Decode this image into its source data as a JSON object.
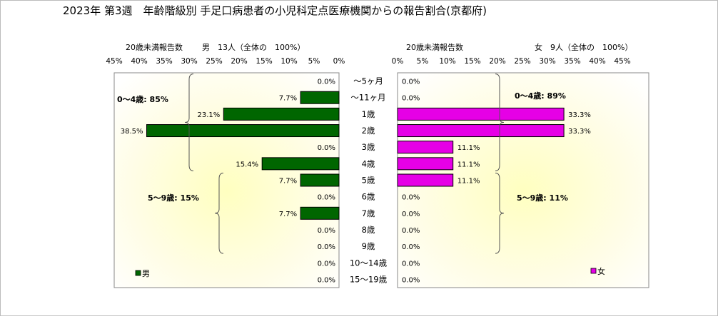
{
  "title": "2023年 第3週　年齢階級別 手足口病患者の小児科定点医療機関からの報告割合(京都府)",
  "chart_data": {
    "type": "bar",
    "categories": [
      "～5ヶ月",
      "～11ヶ月",
      "1歳",
      "2歳",
      "3歳",
      "4歳",
      "5歳",
      "6歳",
      "7歳",
      "8歳",
      "9歳",
      "10～14歳",
      "15～19歳"
    ],
    "x_ticks": [
      "45%",
      "40%",
      "35%",
      "30%",
      "25%",
      "20%",
      "15%",
      "10%",
      "5%",
      "0%"
    ],
    "x_ticks_right": [
      "0%",
      "5%",
      "10%",
      "15%",
      "20%",
      "25%",
      "30%",
      "35%",
      "40%",
      "45%"
    ],
    "xlim": [
      0,
      45
    ],
    "series": [
      {
        "name": "男",
        "subtitle_caption": "20歳未満報告数",
        "subtitle_total": "男　13人（全体の　100%）",
        "color": "#006600",
        "values": [
          0.0,
          7.7,
          23.1,
          38.5,
          0.0,
          15.4,
          7.7,
          0.0,
          7.7,
          0.0,
          0.0,
          0.0,
          0.0
        ],
        "labels": [
          "0.0%",
          "7.7%",
          "23.1%",
          "38.5%",
          "0.0%",
          "15.4%",
          "7.7%",
          "0.0%",
          "7.7%",
          "0.0%",
          "0.0%",
          "0.0%",
          "0.0%"
        ],
        "group_labels": [
          "0～4歳: 85%",
          "5～9歳: 15%"
        ]
      },
      {
        "name": "女",
        "subtitle_caption": "20歳未満報告数",
        "subtitle_total": "女　9人（全体の　100%）",
        "color": "#e600e6",
        "values": [
          0.0,
          0.0,
          33.3,
          33.3,
          11.1,
          11.1,
          11.1,
          0.0,
          0.0,
          0.0,
          0.0,
          0.0,
          0.0
        ],
        "labels": [
          "0.0%",
          "0.0%",
          "33.3%",
          "33.3%",
          "11.1%",
          "11.1%",
          "11.1%",
          "0.0%",
          "0.0%",
          "0.0%",
          "0.0%",
          "0.0%",
          "0.0%"
        ],
        "group_labels": [
          "0～4歳: 89%",
          "5～9歳: 11%"
        ]
      }
    ]
  }
}
